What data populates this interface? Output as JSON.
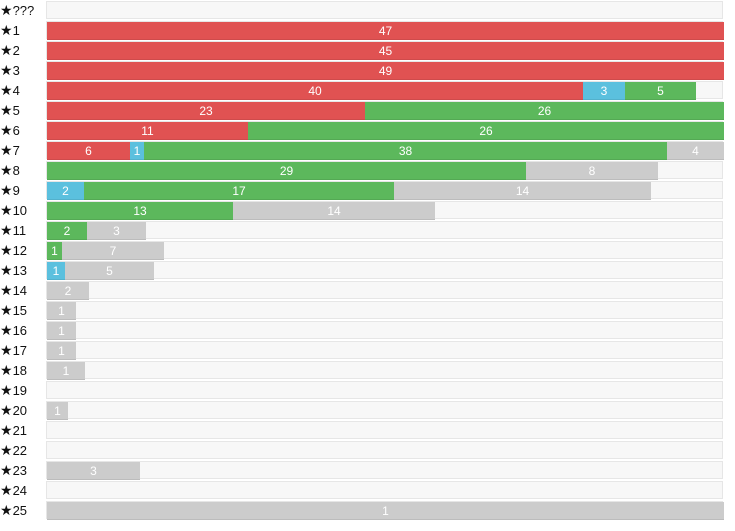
{
  "colors": {
    "red": "#e05252",
    "blue": "#5bc0de",
    "green": "#5cb85c",
    "gray": "#cccccc"
  },
  "scale_max": 57,
  "rows": [
    {
      "label": "???",
      "segments": []
    },
    {
      "label": "1",
      "segments": [
        {
          "color": "red",
          "value": 47,
          "count": 57
        }
      ]
    },
    {
      "label": "2",
      "segments": [
        {
          "color": "red",
          "value": 45,
          "count": 57
        }
      ]
    },
    {
      "label": "3",
      "segments": [
        {
          "color": "red",
          "value": 49,
          "count": 57
        }
      ]
    },
    {
      "label": "4",
      "segments": [
        {
          "color": "red",
          "value": 40,
          "count": 45.1
        },
        {
          "color": "blue",
          "value": 3,
          "count": 3.5
        },
        {
          "color": "green",
          "value": 5,
          "count": 6.0
        }
      ]
    },
    {
      "label": "5",
      "segments": [
        {
          "color": "red",
          "value": 23,
          "count": 26.8
        },
        {
          "color": "green",
          "value": 26,
          "count": 30.2
        }
      ]
    },
    {
      "label": "6",
      "segments": [
        {
          "color": "red",
          "value": 11,
          "count": 16.9
        },
        {
          "color": "green",
          "value": 26,
          "count": 40.1
        }
      ]
    },
    {
      "label": "7",
      "segments": [
        {
          "color": "red",
          "value": 6,
          "count": 7.0
        },
        {
          "color": "blue",
          "value": 1,
          "count": 1.2
        },
        {
          "color": "green",
          "value": 38,
          "count": 44.0
        },
        {
          "color": "gray",
          "value": 4,
          "count": 4.8
        }
      ]
    },
    {
      "label": "8",
      "segments": [
        {
          "color": "green",
          "value": 29,
          "count": 40.3
        },
        {
          "color": "gray",
          "value": 8,
          "count": 11.1
        }
      ]
    },
    {
      "label": "9",
      "segments": [
        {
          "color": "blue",
          "value": 2,
          "count": 3.1
        },
        {
          "color": "green",
          "value": 17,
          "count": 26.1
        },
        {
          "color": "gray",
          "value": 14,
          "count": 21.6
        }
      ]
    },
    {
      "label": "10",
      "segments": [
        {
          "color": "green",
          "value": 13,
          "count": 15.7
        },
        {
          "color": "gray",
          "value": 14,
          "count": 17.0
        }
      ]
    },
    {
      "label": "11",
      "segments": [
        {
          "color": "green",
          "value": 2,
          "count": 3.4
        },
        {
          "color": "gray",
          "value": 3,
          "count": 5.0
        }
      ]
    },
    {
      "label": "12",
      "segments": [
        {
          "color": "green",
          "value": 1,
          "count": 1.3
        },
        {
          "color": "gray",
          "value": 7,
          "count": 8.6
        }
      ]
    },
    {
      "label": "13",
      "segments": [
        {
          "color": "blue",
          "value": 1,
          "count": 1.5
        },
        {
          "color": "gray",
          "value": 5,
          "count": 7.5
        }
      ]
    },
    {
      "label": "14",
      "segments": [
        {
          "color": "gray",
          "value": 2,
          "count": 3.5
        }
      ]
    },
    {
      "label": "15",
      "segments": [
        {
          "color": "gray",
          "value": 1,
          "count": 2.4
        }
      ]
    },
    {
      "label": "16",
      "segments": [
        {
          "color": "gray",
          "value": 1,
          "count": 2.4
        }
      ]
    },
    {
      "label": "17",
      "segments": [
        {
          "color": "gray",
          "value": 1,
          "count": 2.4
        }
      ]
    },
    {
      "label": "18",
      "segments": [
        {
          "color": "gray",
          "value": 1,
          "count": 3.2
        }
      ]
    },
    {
      "label": "19",
      "segments": []
    },
    {
      "label": "20",
      "segments": [
        {
          "color": "gray",
          "value": 1,
          "count": 1.8
        }
      ]
    },
    {
      "label": "21",
      "segments": []
    },
    {
      "label": "22",
      "segments": []
    },
    {
      "label": "23",
      "segments": [
        {
          "color": "gray",
          "value": 3,
          "count": 7.8
        }
      ]
    },
    {
      "label": "24",
      "segments": []
    },
    {
      "label": "25",
      "segments": [
        {
          "color": "gray",
          "value": 1,
          "count": 57
        }
      ]
    }
  ]
}
